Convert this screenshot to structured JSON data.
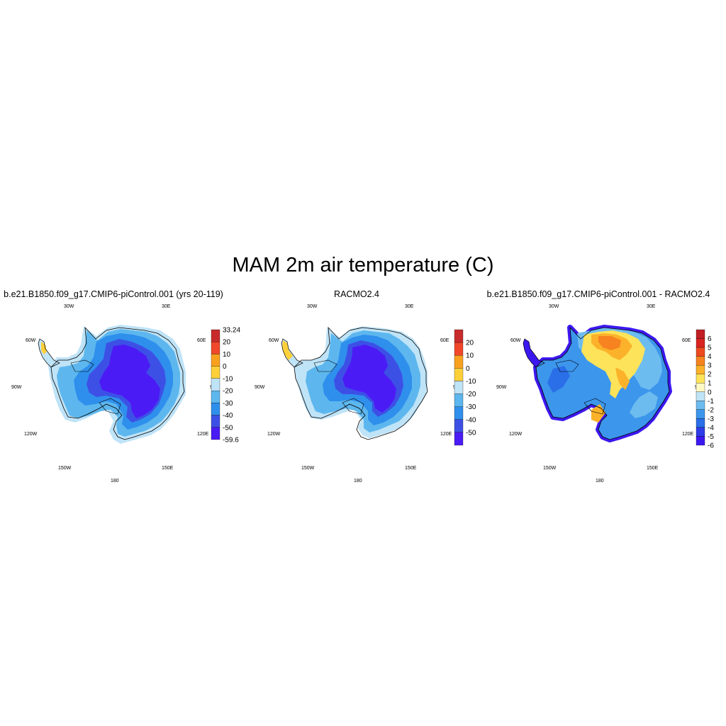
{
  "title": "MAM 2m air temperature (C)",
  "panels": [
    {
      "title": "b.e21.B1850.f09_g17.CMIP6-piControl.001 (yrs 20-119)",
      "kind": "model",
      "colorbar": {
        "colors": [
          "#4b1bf5",
          "#3d50e6",
          "#2f8fec",
          "#5db7ee",
          "#bfe3f7",
          "#fdd03a",
          "#f9a11f",
          "#f1472b",
          "#c82b2b"
        ],
        "labels": [
          "33.24",
          "20",
          "10",
          "0",
          "-10",
          "-20",
          "-30",
          "-40",
          "-50",
          "-59.6"
        ]
      }
    },
    {
      "title": "RACMO2.4",
      "kind": "obs",
      "colorbar": {
        "colors": [
          "#4b1bf5",
          "#3d50e6",
          "#2f8fec",
          "#5db7ee",
          "#bfe3f7",
          "#fdd03a",
          "#f9a11f",
          "#f1472b",
          "#c82b2b"
        ],
        "labels": [
          "20",
          "10",
          "0",
          "-10",
          "-20",
          "-30",
          "-40",
          "-50"
        ]
      }
    },
    {
      "title": "b.e21.B1850.f09_g17.CMIP6-piControl.001 - RACMO2.4",
      "kind": "diff",
      "colorbar": {
        "colors": [
          "#3c18f0",
          "#2d3ce6",
          "#2a6ee8",
          "#3c96ec",
          "#6dbcf0",
          "#bfe4f7",
          "#fff9c4",
          "#fde35a",
          "#fbb22a",
          "#f68220",
          "#ee4a1f",
          "#d92320",
          "#c01f24"
        ],
        "labels": [
          "6",
          "5",
          "4",
          "3",
          "2",
          "1",
          "0",
          "-1",
          "-2",
          "-3",
          "-4",
          "-5",
          "-6"
        ]
      }
    }
  ],
  "map_labels": {
    "lon_30w": "30W",
    "lon_30e": "30E",
    "lon_60w": "60W",
    "lon_60e": "60E",
    "lon_90w": "90W",
    "lon_90e": "90E",
    "lon_120w": "120W",
    "lon_120e": "120E",
    "lon_150w": "150W",
    "lon_150e": "150E",
    "lon_180": "180"
  }
}
